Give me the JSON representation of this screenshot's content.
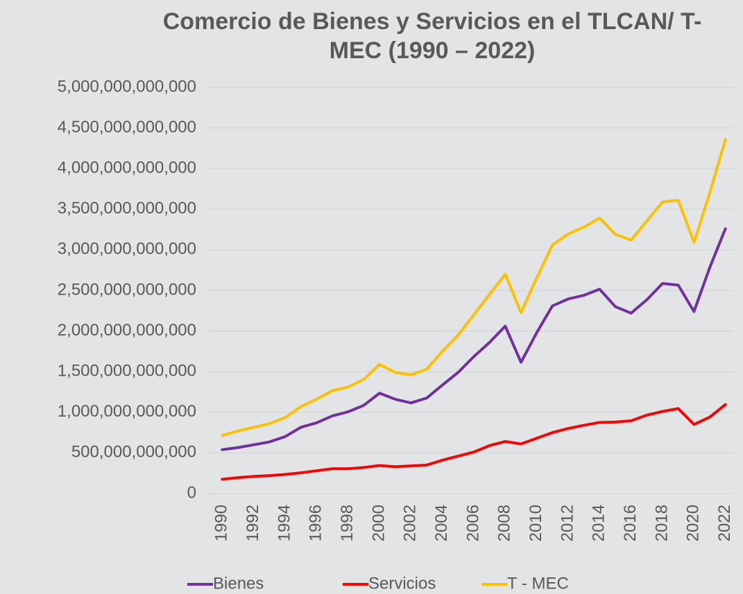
{
  "chart_data": {
    "type": "line",
    "title": "Comercio de Bienes y Servicios en el TLCAN/ T- MEC (1990 – 2022)",
    "categories": [
      "1990",
      null,
      "1992",
      null,
      "1994",
      null,
      "1996",
      null,
      "1998",
      null,
      "2000",
      null,
      "2002",
      null,
      "2004",
      null,
      "2006",
      null,
      "2008",
      null,
      "2010",
      null,
      "2012",
      null,
      "2014",
      null,
      "2016",
      null,
      "2018",
      null,
      "2020",
      null,
      "2022"
    ],
    "series": [
      {
        "name": "Bienes",
        "color": "#7030a0",
        "values": [
          540000000000,
          565000000000,
          600000000000,
          635000000000,
          700000000000,
          815000000000,
          870000000000,
          955000000000,
          1005000000000,
          1085000000000,
          1235000000000,
          1160000000000,
          1115000000000,
          1175000000000,
          1335000000000,
          1490000000000,
          1685000000000,
          1860000000000,
          2060000000000,
          1615000000000,
          1980000000000,
          2310000000000,
          2395000000000,
          2440000000000,
          2515000000000,
          2300000000000,
          2220000000000,
          2385000000000,
          2585000000000,
          2565000000000,
          2240000000000,
          2780000000000,
          3260000000000
        ]
      },
      {
        "name": "Servicios",
        "color": "#ff0000",
        "values": [
          175000000000,
          195000000000,
          210000000000,
          220000000000,
          235000000000,
          255000000000,
          280000000000,
          305000000000,
          305000000000,
          320000000000,
          345000000000,
          330000000000,
          340000000000,
          350000000000,
          410000000000,
          460000000000,
          510000000000,
          590000000000,
          640000000000,
          610000000000,
          680000000000,
          750000000000,
          800000000000,
          840000000000,
          875000000000,
          880000000000,
          895000000000,
          965000000000,
          1010000000000,
          1045000000000,
          850000000000,
          940000000000,
          1095000000000
        ]
      },
      {
        "name": "T - MEC",
        "color": "#ffc000",
        "values": [
          715000000000,
          770000000000,
          815000000000,
          860000000000,
          935000000000,
          1070000000000,
          1160000000000,
          1265000000000,
          1310000000000,
          1405000000000,
          1590000000000,
          1490000000000,
          1460000000000,
          1530000000000,
          1750000000000,
          1950000000000,
          2200000000000,
          2450000000000,
          2700000000000,
          2225000000000,
          2655000000000,
          3060000000000,
          3195000000000,
          3280000000000,
          3390000000000,
          3190000000000,
          3120000000000,
          3355000000000,
          3590000000000,
          3610000000000,
          3090000000000,
          3700000000000,
          4360000000000
        ]
      }
    ],
    "ylim": [
      0,
      5000000000000
    ],
    "yticks": [
      0,
      {
        "value": 500000000000,
        "label": "500,000,000,000"
      },
      {
        "value": 1000000000000,
        "label": "1,000,000,000,000"
      },
      {
        "value": 1500000000000,
        "label": "1,500,000,000,000"
      },
      {
        "value": 2000000000000,
        "label": "2,000,000,000,000"
      },
      {
        "value": 2500000000000,
        "label": "2,500,000,000,000"
      },
      {
        "value": 3000000000000,
        "label": "3,000,000,000,000"
      },
      {
        "value": 3500000000000,
        "label": "3,500,000,000,000"
      },
      {
        "value": 4000000000000,
        "label": "4,000,000,000,000"
      },
      {
        "value": 4500000000000,
        "label": "4,500,000,000,000"
      },
      {
        "value": 5000000000000,
        "label": "5,000,000,000,000"
      }
    ],
    "grid": true,
    "legend": "bottom"
  }
}
